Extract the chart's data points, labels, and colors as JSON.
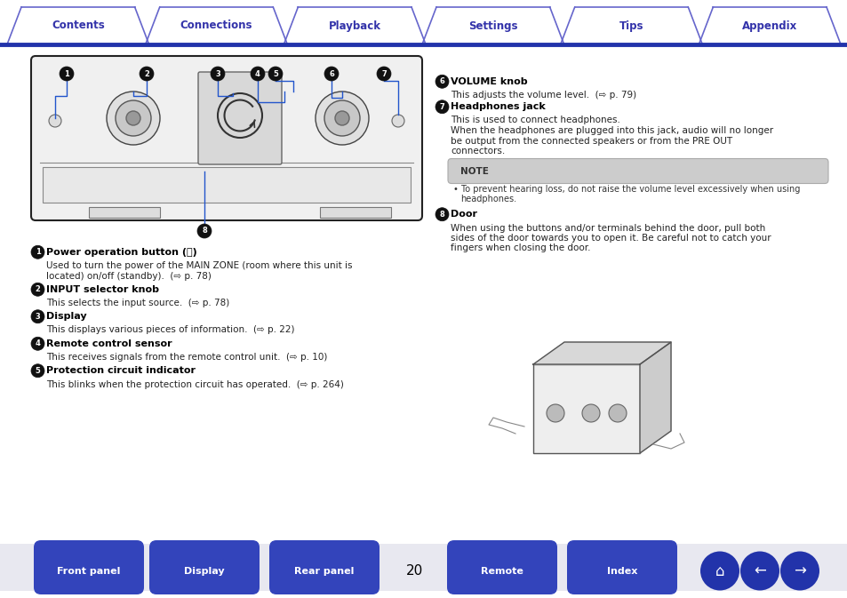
{
  "bg_color": "#ffffff",
  "tab_border_color": "#6666cc",
  "tab_text_color": "#3333aa",
  "tab_labels": [
    "Contents",
    "Connections",
    "Playback",
    "Settings",
    "Tips",
    "Appendix"
  ],
  "bottom_buttons": [
    "Front panel",
    "Display",
    "Rear panel",
    "Remote",
    "Index"
  ],
  "bottom_button_color": "#3344bb",
  "page_number": "20",
  "note_text": "NOTE",
  "left_col_items": [
    {
      "num": "1",
      "title": "Power operation button (⏻)",
      "body": "Used to turn the power of the MAIN ZONE (room where this unit is\nlocated) on/off (standby).  (⇨ p. 78)"
    },
    {
      "num": "2",
      "title": "INPUT selector knob",
      "body": "This selects the input source.  (⇨ p. 78)"
    },
    {
      "num": "3",
      "title": "Display",
      "body": "This displays various pieces of information.  (⇨ p. 22)"
    },
    {
      "num": "4",
      "title": "Remote control sensor",
      "body": "This receives signals from the remote control unit.  (⇨ p. 10)"
    },
    {
      "num": "5",
      "title": "Protection circuit indicator",
      "body": "This blinks when the protection circuit has operated.  (⇨ p. 264)"
    }
  ],
  "right_col_items": [
    {
      "num": "6",
      "title": "VOLUME knob",
      "body": "This adjusts the volume level.  (⇨ p. 79)"
    },
    {
      "num": "7",
      "title": "Headphones jack",
      "body_lines": [
        "This is used to connect headphones.",
        "When the headphones are plugged into this jack, audio will no longer",
        "be output from the connected speakers or from the PRE OUT",
        "connectors."
      ]
    },
    {
      "num": "8",
      "title": "Door",
      "body_lines": [
        "When using the buttons and/or terminals behind the door, pull both",
        "sides of the door towards you to open it. Be careful not to catch your",
        "fingers when closing the door."
      ]
    }
  ],
  "note_bullet": "To prevent hearing loss, do not raise the volume level excessively when using\nheadphones."
}
